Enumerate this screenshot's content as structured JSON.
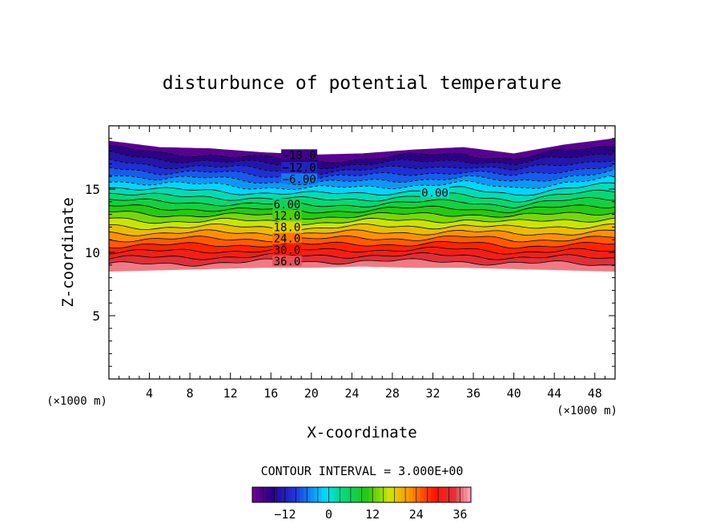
{
  "chart_data": {
    "type": "contour",
    "title": "disturbunce of potential temperature",
    "xlabel": "X-coordinate",
    "ylabel": "Z-coordinate",
    "x_unit": "(×1000 m)",
    "x_unit_right": "(×1000 m)",
    "xlim": [
      0,
      50
    ],
    "ylim": [
      0,
      20
    ],
    "x_ticks": [
      4,
      8,
      12,
      16,
      20,
      24,
      28,
      32,
      36,
      40,
      44,
      48
    ],
    "y_ticks": [
      5,
      10,
      15
    ],
    "contour_interval": "CONTOUR INTERVAL = 3.000E+00",
    "colorbar": {
      "min": -21,
      "max": 39,
      "step": 3,
      "tick_values": [
        -12,
        0,
        12,
        24,
        36
      ],
      "tick_labels": [
        "−12",
        "0",
        "12",
        "24",
        "36"
      ]
    },
    "contour_labels": [
      {
        "text": "−18.0",
        "value": -18,
        "x": 18.8,
        "z": 17.7
      },
      {
        "text": "−12.0",
        "value": -12,
        "x": 18.8,
        "z": 16.7
      },
      {
        "text": "−6.00",
        "value": -6,
        "x": 18.8,
        "z": 15.8
      },
      {
        "text": "0.00",
        "value": 0,
        "x": 32.2,
        "z": 14.7
      },
      {
        "text": "6.00",
        "value": 6,
        "x": 17.6,
        "z": 13.8
      },
      {
        "text": "12.0",
        "value": 12,
        "x": 17.6,
        "z": 12.9
      },
      {
        "text": "18.0",
        "value": 18,
        "x": 17.6,
        "z": 12.0
      },
      {
        "text": "24.0",
        "value": 24,
        "x": 17.6,
        "z": 11.1
      },
      {
        "text": "30.0",
        "value": 30,
        "x": 17.6,
        "z": 10.2
      },
      {
        "text": "36.0",
        "value": 36,
        "x": 17.6,
        "z": 9.3
      }
    ],
    "field": {
      "profile_x": [
        0,
        5,
        10,
        15,
        20,
        25,
        30,
        35,
        40,
        45,
        50
      ],
      "top_z": [
        18.8,
        18.3,
        18.2,
        17.9,
        17.7,
        17.8,
        18.1,
        18.3,
        17.8,
        18.5,
        19.0
      ],
      "bottom_z": [
        8.5,
        8.6,
        8.7,
        8.8,
        8.8,
        8.9,
        8.8,
        8.8,
        8.7,
        8.6,
        8.5
      ],
      "value_top": -21,
      "value_bottom": 39,
      "warp_amplitude_z": 0.15
    }
  }
}
